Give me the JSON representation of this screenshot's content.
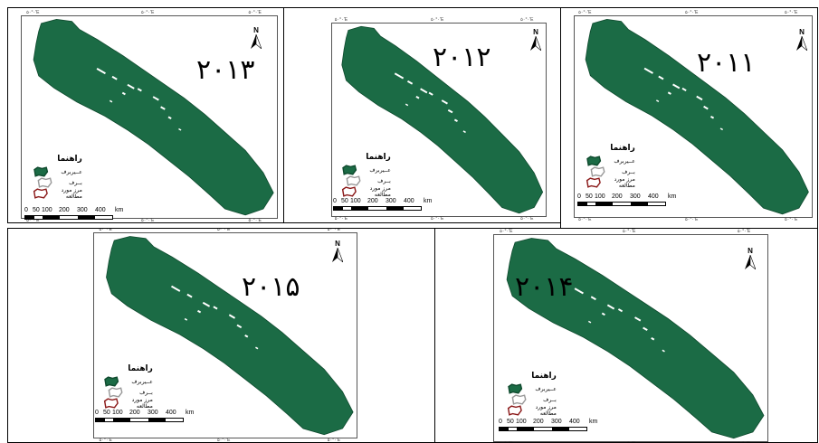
{
  "panels": [
    {
      "year": "۲۰۱۳"
    },
    {
      "year": "۲۰۱۲"
    },
    {
      "year": "۲۰۱۱"
    },
    {
      "year": "۲۰۱۵"
    },
    {
      "year": "۲۰۱۴"
    }
  ],
  "legend": {
    "title": "راهنما",
    "items": [
      {
        "label": "عــیربرف",
        "icon": "green-polygon-icon",
        "color": "#1b6b45"
      },
      {
        "label": "بــرف",
        "icon": "white-polygon-icon",
        "color": "#ffffff"
      },
      {
        "label": "مرز مورد مطالعه",
        "icon": "red-outline-polygon-icon",
        "color": "#8b1a1a"
      }
    ]
  },
  "scale": {
    "ticks": [
      "0",
      "50",
      "100",
      "200",
      "300",
      "400"
    ],
    "unit": "km"
  },
  "north_label": "N",
  "map_color": "#1b6b45",
  "coord_label": "۵۰°۰'E"
}
